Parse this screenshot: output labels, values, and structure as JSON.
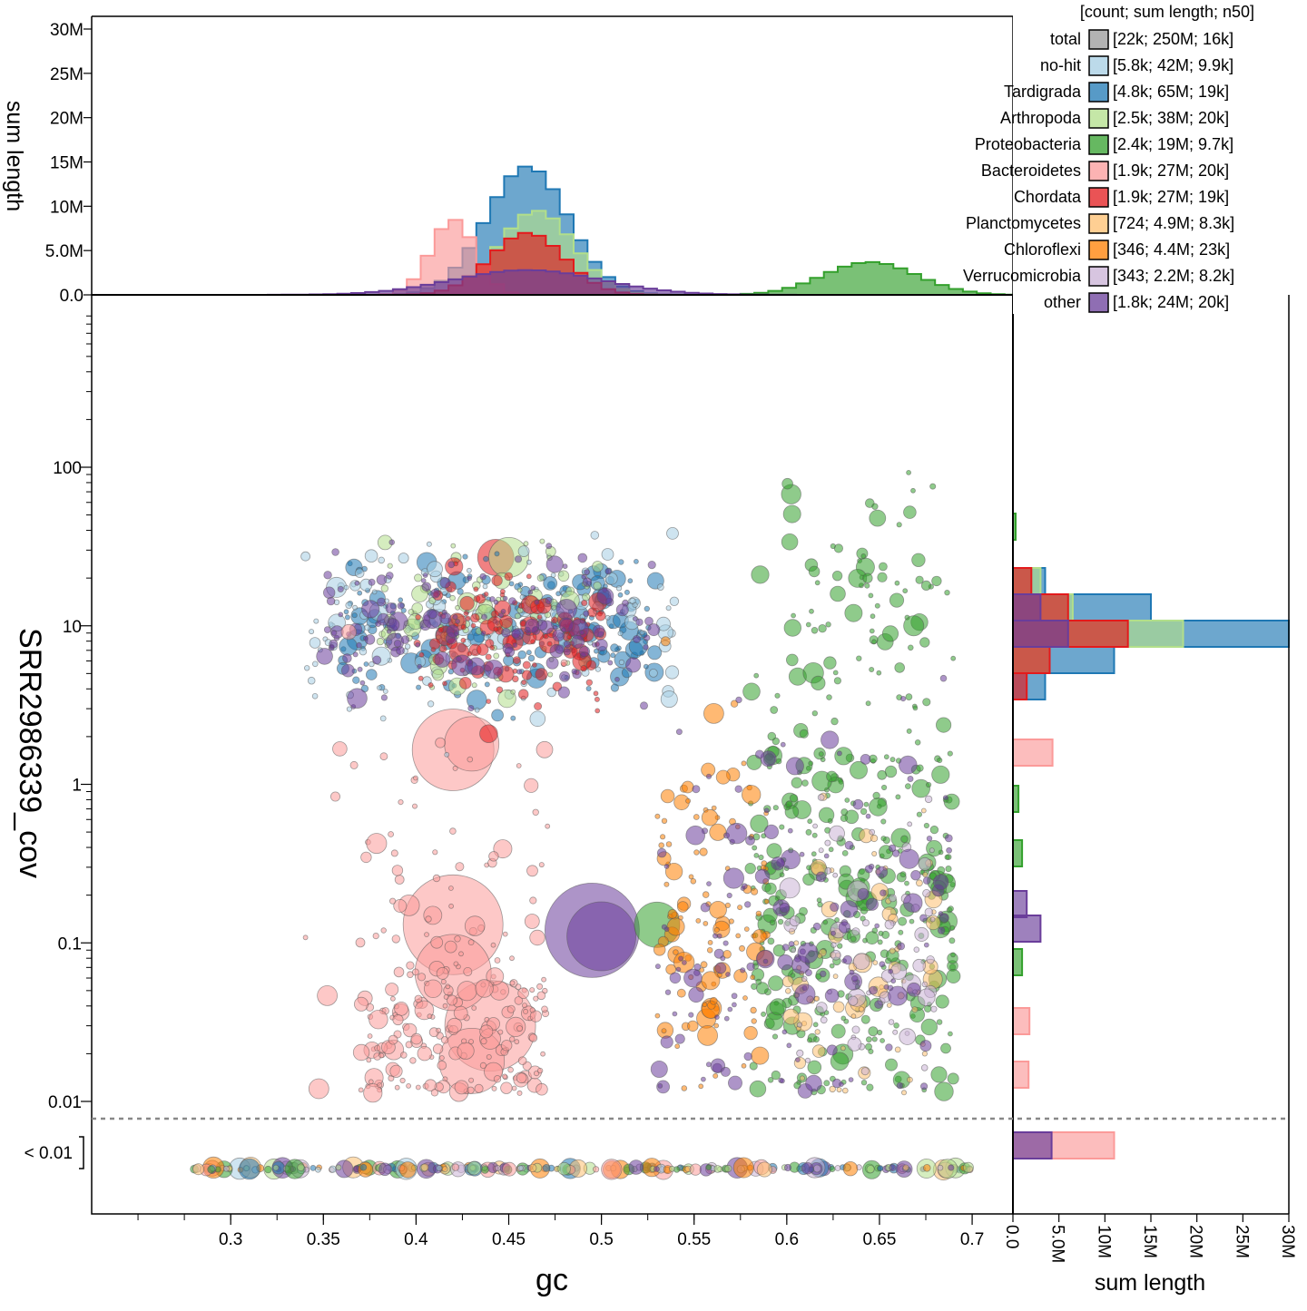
{
  "chart_data": {
    "type": "scatter",
    "x_axis": {
      "label": "gc",
      "ticks": [
        0.3,
        0.35,
        0.4,
        0.45,
        0.5,
        0.55,
        0.6,
        0.65,
        0.7
      ],
      "tick_labels": [
        "0.3",
        "0.35",
        "0.4",
        "0.45",
        "0.5",
        "0.55",
        "0.6",
        "0.65",
        "0.7"
      ],
      "range": [
        0.22,
        0.72
      ]
    },
    "y_axis": {
      "label": "SRR2986339_cov",
      "scale": "log",
      "ticks": [
        0.01,
        0.1,
        1,
        10,
        100
      ],
      "tick_labels": [
        "0.01",
        "0.1",
        "1",
        "10",
        "100"
      ],
      "range": [
        0.008,
        1000
      ],
      "below_threshold_label": "< 0.01"
    },
    "top_histogram": {
      "ylabel": "sum length",
      "ticks": [
        0,
        5000000,
        10000000,
        15000000,
        20000000,
        25000000,
        30000000
      ],
      "tick_labels": [
        "0.0",
        "5.0M",
        "10M",
        "15M",
        "20M",
        "25M",
        "30M"
      ],
      "range": [
        0,
        31000000
      ]
    },
    "right_histogram": {
      "xlabel": "sum length",
      "ticks": [
        0,
        5000000,
        10000000,
        15000000,
        20000000,
        25000000,
        30000000
      ],
      "tick_labels": [
        "0.0",
        "5.0M",
        "10M",
        "15M",
        "20M",
        "25M",
        "30M"
      ],
      "range": [
        0,
        30000000
      ]
    },
    "legend": {
      "header": "[count; sum length; n50]",
      "placement": "top-right",
      "entries": [
        {
          "name": "total",
          "stats": "[22k; 250M; 16k]",
          "color": "#999999"
        },
        {
          "name": "no-hit",
          "stats": "[5.8k; 42M; 9.9k]",
          "color": "#a6cee3"
        },
        {
          "name": "Tardigrada",
          "stats": "[4.8k; 65M; 19k]",
          "color": "#1f78b4"
        },
        {
          "name": "Arthropoda",
          "stats": "[2.5k; 38M; 20k]",
          "color": "#b2df8a"
        },
        {
          "name": "Proteobacteria",
          "stats": "[2.4k; 19M; 9.7k]",
          "color": "#33a02c"
        },
        {
          "name": "Bacteroidetes",
          "stats": "[1.9k; 27M; 20k]",
          "color": "#fb9a99"
        },
        {
          "name": "Chordata",
          "stats": "[1.9k; 27M; 19k]",
          "color": "#e31a1c"
        },
        {
          "name": "Planctomycetes",
          "stats": "[724; 4.9M; 8.3k]",
          "color": "#fdbf6f"
        },
        {
          "name": "Chloroflexi",
          "stats": "[346; 4.4M; 23k]",
          "color": "#ff7f00"
        },
        {
          "name": "Verrucomicrobia",
          "stats": "[343; 2.2M; 8.2k]",
          "color": "#cab2d6"
        },
        {
          "name": "other",
          "stats": "[1.8k; 24M; 20k]",
          "color": "#6a3d9a"
        }
      ]
    },
    "clusters": [
      {
        "group": "Tardigrada",
        "gc_range": [
          0.36,
          0.53
        ],
        "cov_log10_center": 1.0,
        "cov_log10_spread": 0.22,
        "points": 220
      },
      {
        "group": "no-hit",
        "gc_range": [
          0.34,
          0.54
        ],
        "cov_log10_center": 1.0,
        "cov_log10_spread": 0.26,
        "points": 140
      },
      {
        "group": "Arthropoda",
        "gc_range": [
          0.38,
          0.5
        ],
        "cov_log10_center": 1.05,
        "cov_log10_spread": 0.2,
        "points": 110
      },
      {
        "group": "Chordata",
        "gc_range": [
          0.4,
          0.5
        ],
        "cov_log10_center": 0.95,
        "cov_log10_spread": 0.18,
        "points": 130
      },
      {
        "group": "other",
        "gc_range": [
          0.35,
          0.53
        ],
        "cov_log10_center": 1.0,
        "cov_log10_spread": 0.2,
        "points": 150
      },
      {
        "group": "Proteobacteria",
        "gc_range": [
          0.58,
          0.69
        ],
        "cov_log10_center": -0.7,
        "cov_log10_spread": 0.75,
        "points": 380
      },
      {
        "group": "Proteobacteria",
        "gc_range": [
          0.6,
          0.68
        ],
        "cov_log10_center": 1.2,
        "cov_log10_spread": 0.35,
        "points": 60
      },
      {
        "group": "Chloroflexi",
        "gc_range": [
          0.53,
          0.59
        ],
        "cov_log10_center": -0.8,
        "cov_log10_spread": 0.5,
        "points": 120
      },
      {
        "group": "Planctomycetes",
        "gc_range": [
          0.6,
          0.68
        ],
        "cov_log10_center": -1.3,
        "cov_log10_spread": 0.45,
        "points": 80
      },
      {
        "group": "Verrucomicrobia",
        "gc_range": [
          0.6,
          0.68
        ],
        "cov_log10_center": -1.1,
        "cov_log10_spread": 0.5,
        "points": 70
      },
      {
        "group": "other",
        "gc_range": [
          0.53,
          0.69
        ],
        "cov_log10_center": -0.9,
        "cov_log10_spread": 0.6,
        "points": 160
      },
      {
        "group": "Bacteroidetes",
        "gc_range": [
          0.37,
          0.47
        ],
        "cov_log10_center": -1.5,
        "cov_log10_spread": 0.35,
        "points": 200
      },
      {
        "group": "Bacteroidetes",
        "gc_range": [
          0.34,
          0.48
        ],
        "cov_log10_center": -0.5,
        "cov_log10_spread": 0.6,
        "points": 50
      }
    ],
    "large_blobs": [
      {
        "group": "Bacteroidetes",
        "gc": 0.42,
        "cov": 1.65,
        "r": 45
      },
      {
        "group": "Bacteroidetes",
        "gc": 0.43,
        "cov": 1.8,
        "r": 30
      },
      {
        "group": "Bacteroidetes",
        "gc": 0.42,
        "cov": 0.13,
        "r": 55
      },
      {
        "group": "Bacteroidetes",
        "gc": 0.44,
        "cov": 0.03,
        "r": 50
      },
      {
        "group": "Bacteroidetes",
        "gc": 0.42,
        "cov": 0.065,
        "r": 42
      },
      {
        "group": "Bacteroidetes",
        "gc": 0.43,
        "cov": 0.018,
        "r": 36
      },
      {
        "group": "other",
        "gc": 0.495,
        "cov": 0.12,
        "r": 52
      },
      {
        "group": "other",
        "gc": 0.5,
        "cov": 0.11,
        "r": 38
      },
      {
        "group": "Proteobacteria",
        "gc": 0.53,
        "cov": 0.13,
        "r": 25
      },
      {
        "group": "Chordata",
        "gc": 0.443,
        "cov": 27,
        "r": 20
      },
      {
        "group": "Arthropoda",
        "gc": 0.45,
        "cov": 27,
        "r": 22
      }
    ],
    "threshold_line": {
      "cov": 0.008,
      "style": "dashed"
    }
  }
}
